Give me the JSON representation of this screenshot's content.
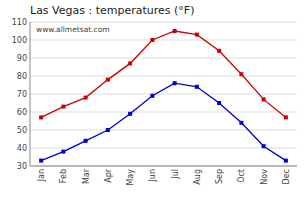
{
  "chart_data": {
    "type": "line",
    "title": "Las Vegas : temperatures (°F)",
    "categories": [
      "Jan",
      "Feb",
      "Mar",
      "Apr",
      "May",
      "Jun",
      "Jul",
      "Aug",
      "Sep",
      "Oct",
      "Nov",
      "Dec"
    ],
    "series": [
      {
        "color": "#cc0000",
        "marker": "square",
        "line_style": "solid",
        "values": [
          57,
          63,
          68,
          78,
          87,
          100,
          105,
          103,
          94,
          81,
          67,
          57
        ]
      },
      {
        "color": "#0000cc",
        "marker": "square",
        "line_style": "solid",
        "values": [
          33,
          38,
          44,
          50,
          59,
          69,
          76,
          74,
          65,
          54,
          41,
          33
        ]
      }
    ],
    "ylim": [
      30,
      110
    ],
    "yticks": [
      30,
      40,
      50,
      60,
      70,
      80,
      90,
      100,
      110
    ],
    "grid": true,
    "annotations": [
      "www.allmetsat.com"
    ]
  }
}
